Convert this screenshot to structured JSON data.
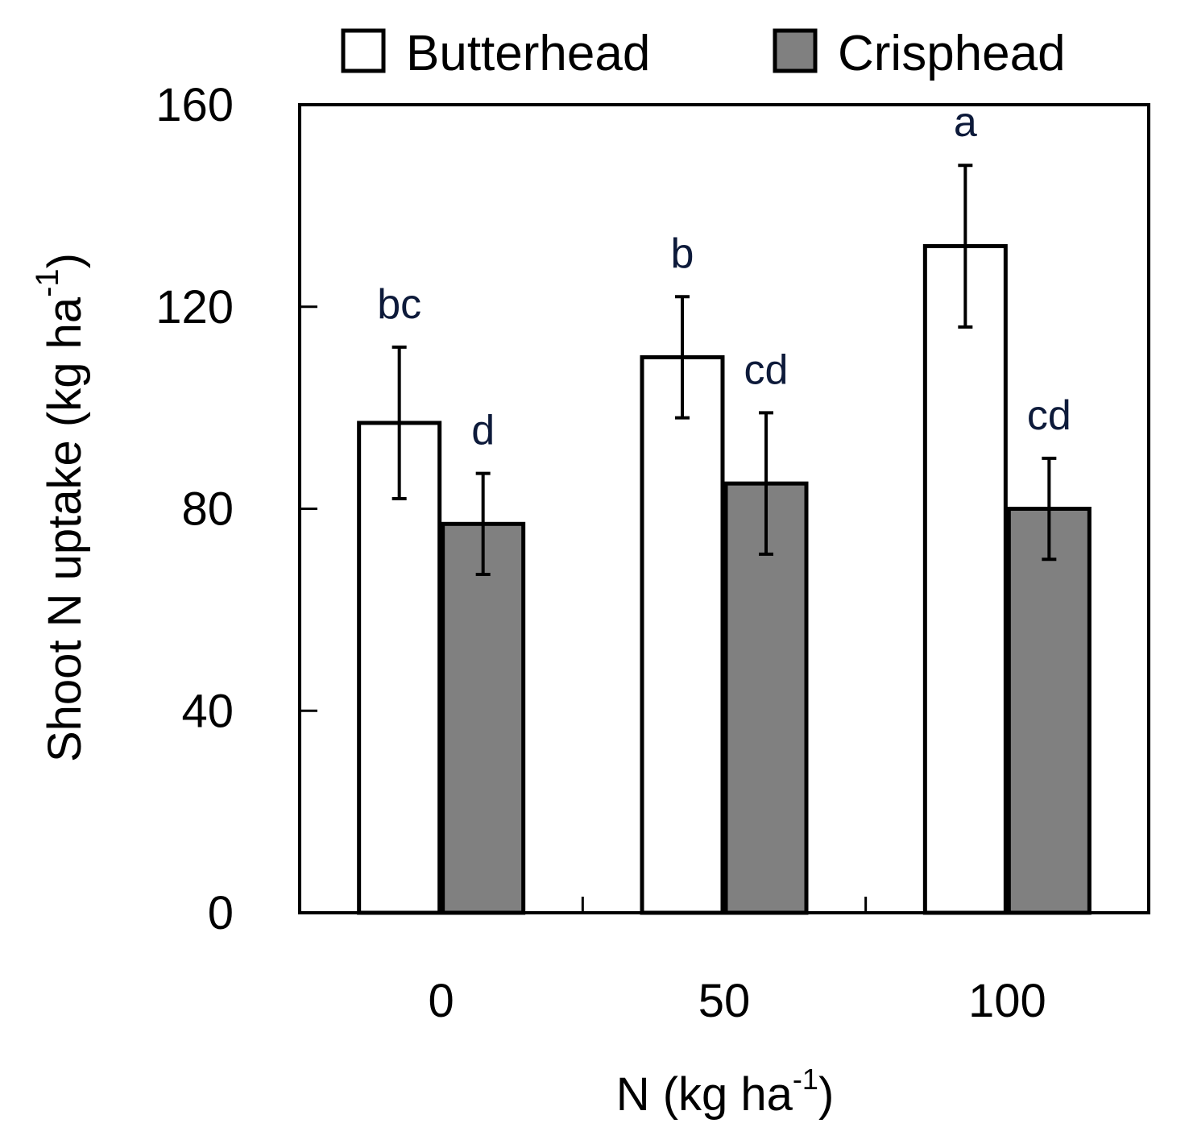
{
  "chart_data": {
    "type": "bar",
    "title": "",
    "xlabel": "N (kg ha",
    "xlabel_sup": "-1",
    "xlabel_end": ")",
    "ylabel": "Shoot N uptake (kg ha",
    "ylabel_sup": "-1",
    "ylabel_end": ")",
    "ylim": [
      0,
      160
    ],
    "yticks": [
      0,
      40,
      80,
      120,
      160
    ],
    "categories": [
      "0",
      "50",
      "100"
    ],
    "series": [
      {
        "name": "Butterhead",
        "color": "#ffffff",
        "values": [
          97,
          110,
          132
        ],
        "errors": [
          15,
          12,
          16
        ],
        "labels": [
          "bc",
          "b",
          "a"
        ]
      },
      {
        "name": "Crisphead",
        "color": "#808080",
        "values": [
          77,
          85,
          80
        ],
        "errors": [
          10,
          14,
          10
        ],
        "labels": [
          "d",
          "cd",
          "cd"
        ]
      }
    ],
    "legend_position": "top"
  }
}
